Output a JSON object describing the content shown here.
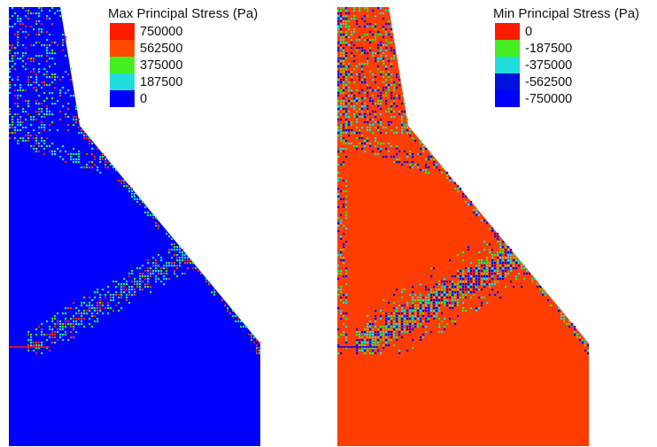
{
  "colors": {
    "red": "#ff1a00",
    "orange_red": "#ff3d00",
    "green": "#33ee22",
    "cyan": "#22dddd",
    "blue": "#0000ff",
    "background": "#ffffff"
  },
  "panels": [
    {
      "id": "max",
      "legend": {
        "title": "Max Principal Stress (Pa)",
        "entries": [
          {
            "label": "750000",
            "color": "#ff1a00"
          },
          {
            "label": "562500",
            "color": "#ff4a00"
          },
          {
            "label": "375000",
            "color": "#44ee22"
          },
          {
            "label": "187500",
            "color": "#22dddd"
          },
          {
            "label": "0",
            "color": "#0000ff"
          }
        ]
      },
      "base_color": "#0000ff"
    },
    {
      "id": "min",
      "legend": {
        "title": "Min Principal Stress (Pa)",
        "entries": [
          {
            "label": "0",
            "color": "#ff1a00"
          },
          {
            "label": "-187500",
            "color": "#44ee22"
          },
          {
            "label": "-375000",
            "color": "#22dddd"
          },
          {
            "label": "-562500",
            "color": "#0011dd"
          },
          {
            "label": "-750000",
            "color": "#0000ff"
          }
        ]
      },
      "base_color": "#ff3d00"
    }
  ]
}
